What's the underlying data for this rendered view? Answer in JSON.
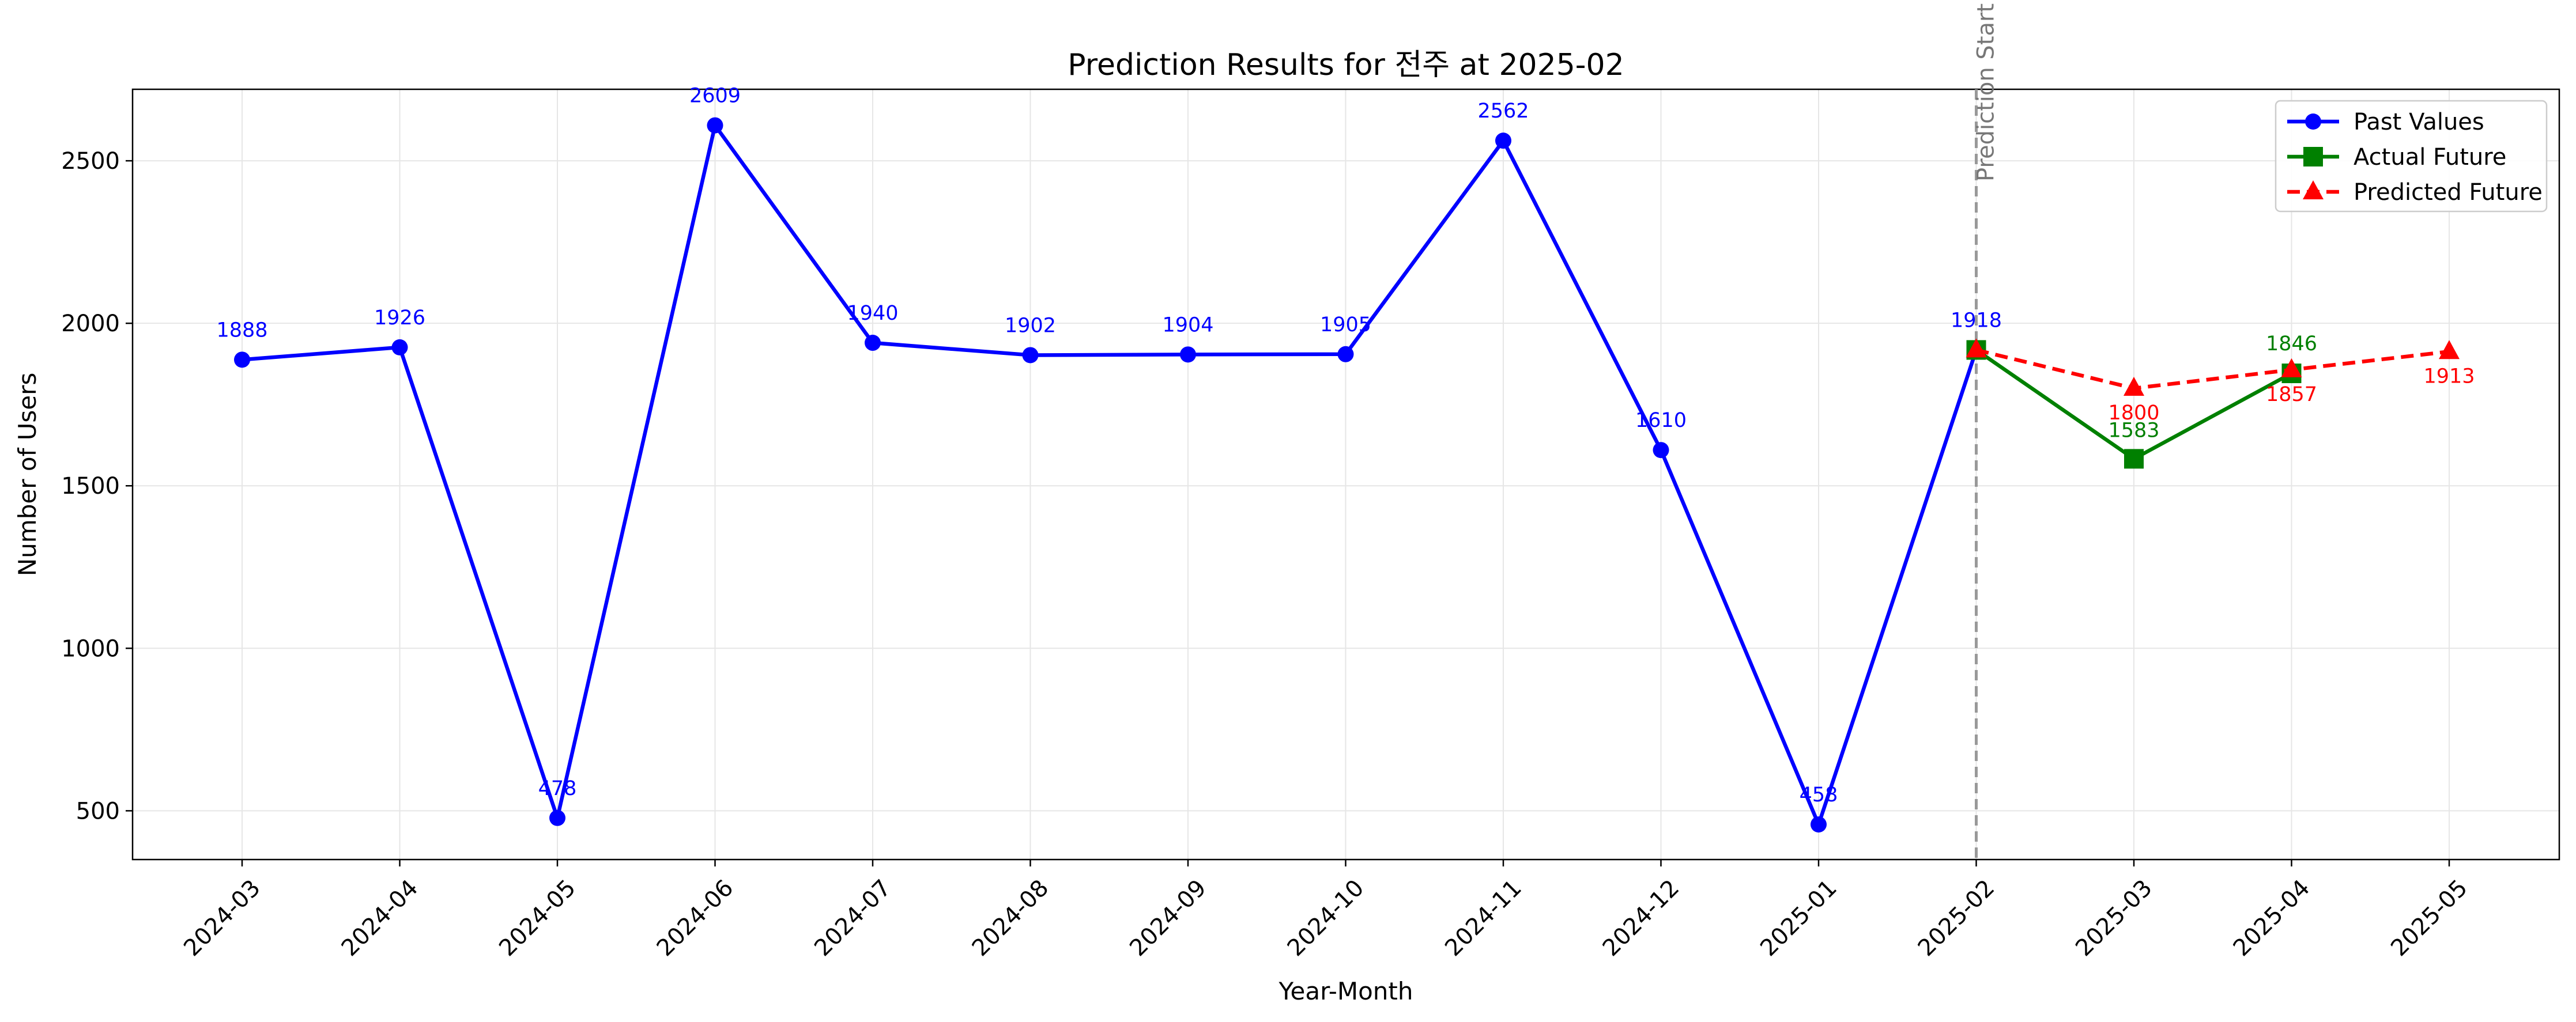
{
  "chart_data": {
    "type": "line",
    "title": "Prediction Results for 전주 at 2025-02",
    "xlabel": "Year-Month",
    "ylabel": "Number of Users",
    "categories": [
      "2024-03",
      "2024-04",
      "2024-05",
      "2024-06",
      "2024-07",
      "2024-08",
      "2024-09",
      "2024-10",
      "2024-11",
      "2024-12",
      "2025-01",
      "2025-02",
      "2025-03",
      "2025-04",
      "2025-05"
    ],
    "ylim": [
      350,
      2720
    ],
    "yticks": [
      500,
      1000,
      1500,
      2000,
      2500
    ],
    "grid": true,
    "legend_position": "top-right",
    "prediction_marker": {
      "label": "Prediction Start",
      "at": "2025-02",
      "color": "#999999"
    },
    "series": [
      {
        "name": "Past Values",
        "color": "#0000ff",
        "marker": "circle",
        "style": "solid",
        "x": [
          "2024-03",
          "2024-04",
          "2024-05",
          "2024-06",
          "2024-07",
          "2024-08",
          "2024-09",
          "2024-10",
          "2024-11",
          "2024-12",
          "2025-01",
          "2025-02"
        ],
        "values": [
          1888,
          1926,
          478,
          2609,
          1940,
          1902,
          1904,
          1905,
          2562,
          1610,
          458,
          1918
        ],
        "labels": [
          "1888",
          "1926",
          "478",
          "2609",
          "1940",
          "1902",
          "1904",
          "1905",
          "2562",
          "1610",
          "458",
          "1918"
        ]
      },
      {
        "name": "Actual Future",
        "color": "#008000",
        "marker": "square",
        "style": "solid",
        "x": [
          "2025-02",
          "2025-03",
          "2025-04"
        ],
        "values": [
          1918,
          1583,
          1846
        ],
        "labels": [
          "",
          "1583",
          "1846"
        ]
      },
      {
        "name": "Predicted Future",
        "color": "#ff0000",
        "marker": "triangle",
        "style": "dashed",
        "x": [
          "2025-02",
          "2025-03",
          "2025-04",
          "2025-05"
        ],
        "values": [
          1918,
          1800,
          1857,
          1913
        ],
        "labels": [
          "",
          "1800",
          "1857",
          "1913"
        ]
      }
    ]
  }
}
